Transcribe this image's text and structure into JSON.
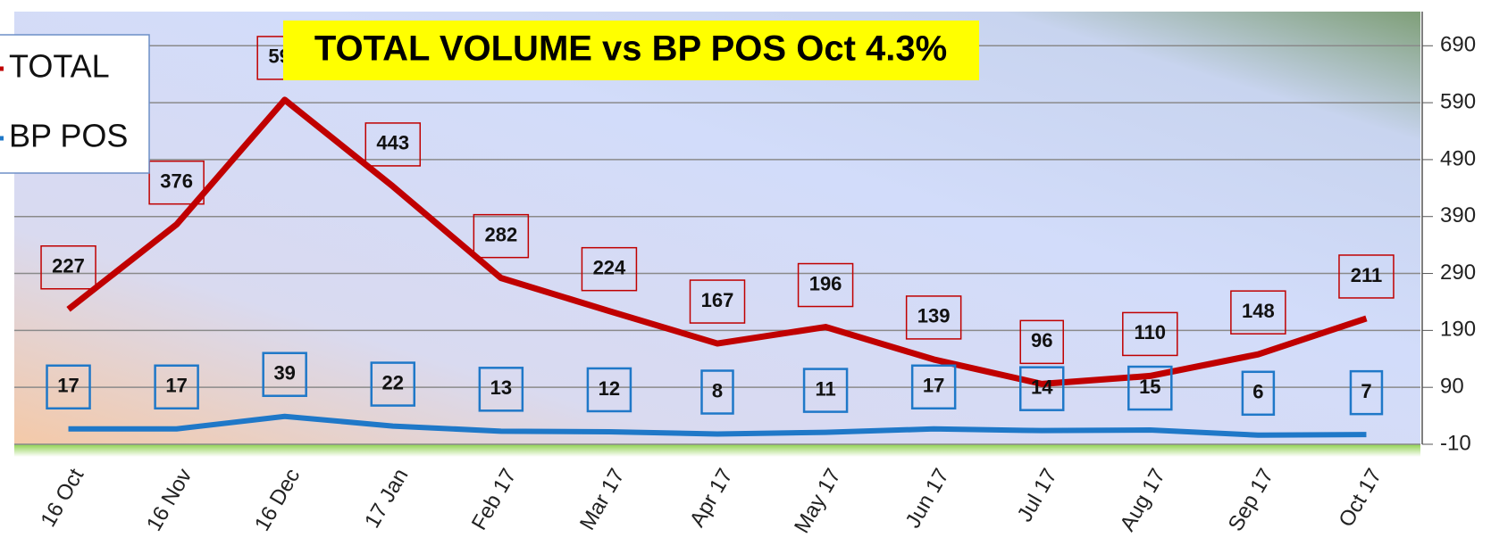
{
  "chart_data": {
    "type": "line",
    "title": "TOTAL VOLUME vs BP POS Oct 4.3%",
    "categories": [
      "16 Oct",
      "16 Nov",
      "16 Dec",
      "17 Jan",
      "Feb 17",
      "Mar 17",
      "Apr 17",
      "May 17",
      "Jun 17",
      "Jul 17",
      "Aug 17",
      "Sep 17",
      "Oct 17"
    ],
    "series": [
      {
        "name": "TOTAL",
        "color": "#c00000",
        "values": [
          227,
          376,
          595,
          443,
          282,
          224,
          167,
          196,
          139,
          96,
          110,
          148,
          211
        ]
      },
      {
        "name": "BP POS",
        "color": "#1f78c8",
        "values": [
          17,
          17,
          39,
          22,
          13,
          12,
          8,
          11,
          17,
          14,
          15,
          6,
          7
        ]
      }
    ],
    "ylim": [
      -10,
      750
    ],
    "yticks": [
      -10,
      90,
      190,
      290,
      390,
      490,
      590,
      690
    ],
    "grid": true,
    "legend": "top-left"
  }
}
